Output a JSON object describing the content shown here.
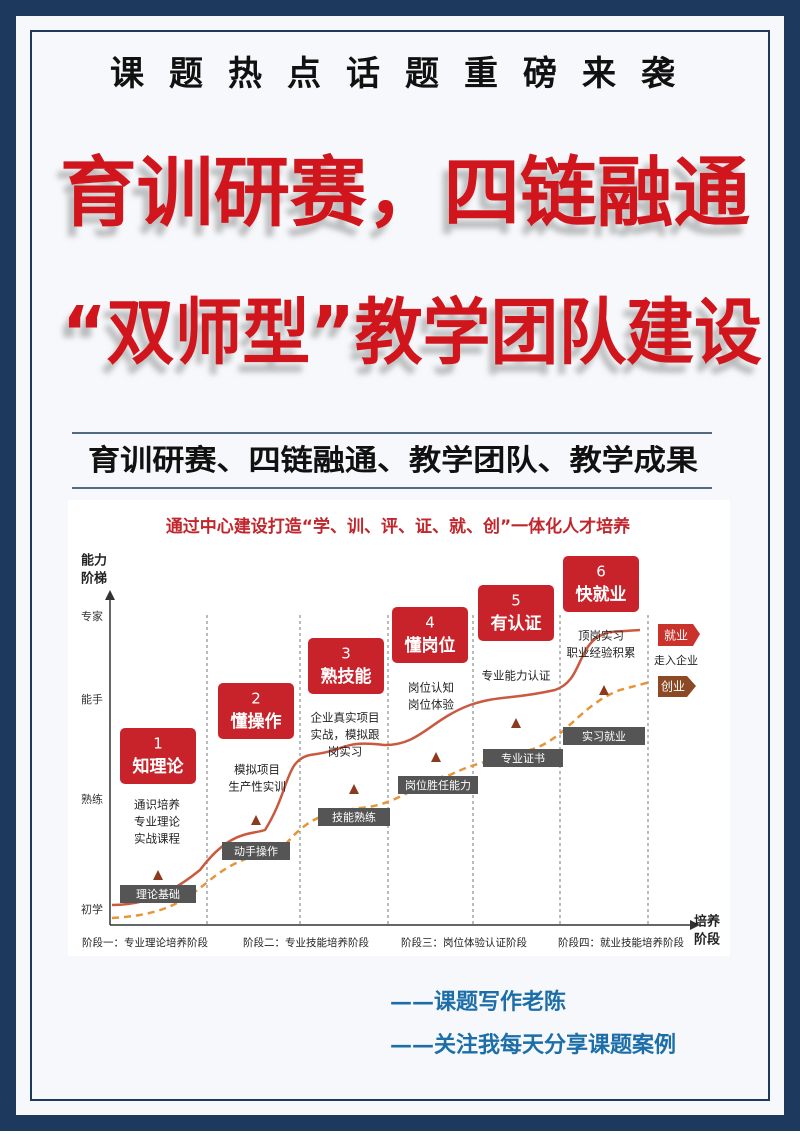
{
  "header": {
    "kicker": "课题热点话题重磅来袭",
    "title_lines": [
      "育训研赛，四链融通",
      "“双师型”教学团队建设"
    ],
    "subtitle": "育训研赛、四链融通、教学团队、教学成果"
  },
  "diagram": {
    "title": "通过中心建设打造“学、训、评、证、就、创”一体化人才培养",
    "y_axis_label": [
      "能力",
      "阶梯"
    ],
    "levels": [
      "专家",
      "能手",
      "熟练",
      "初学"
    ],
    "x_axis_label": [
      "培养",
      "阶段"
    ],
    "stages": [
      "阶段一：专业理论培养阶段",
      "阶段二：专业技能培养阶段",
      "阶段三：岗位体验认证阶段",
      "阶段四：就业技能培养阶段"
    ],
    "steps": [
      {
        "number": "1",
        "label": "知理论",
        "details": [
          "通识培养",
          "专业理论",
          "实战课程"
        ],
        "outcome": "理论基础"
      },
      {
        "number": "2",
        "label": "懂操作",
        "details": [
          "模拟项目",
          "生产性实训"
        ],
        "outcome": "动手操作"
      },
      {
        "number": "3",
        "label": "熟技能",
        "details": [
          "企业真实项目",
          "实战，模拟跟",
          "岗实习"
        ],
        "outcome": "技能熟练"
      },
      {
        "number": "4",
        "label": "懂岗位",
        "details": [
          "岗位认知",
          "岗位体验"
        ],
        "outcome": "岗位胜任能力"
      },
      {
        "number": "5",
        "label": "有认证",
        "details": [
          "专业能力认证"
        ],
        "outcome": "专业证书"
      },
      {
        "number": "6",
        "label": "快就业",
        "details": [
          "顶岗实习",
          "职业经验积累"
        ],
        "outcome": "实习就业"
      }
    ],
    "exits": [
      {
        "label": "就业",
        "note": "走入企业"
      },
      {
        "label": "创业"
      }
    ]
  },
  "footer": [
    "——课题写作老陈",
    "——关注我每天分享课题案例"
  ]
}
